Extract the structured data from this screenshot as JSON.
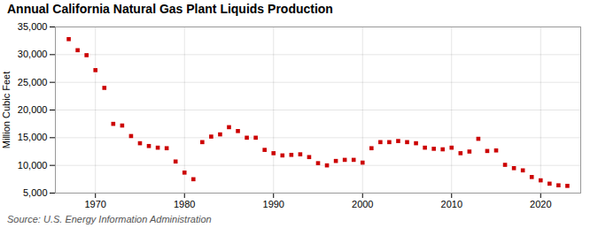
{
  "chart_data": {
    "type": "scatter",
    "title": "Annual California Natural Gas Plant Liquids Production",
    "ylabel": "Million Cubic Feet",
    "source": "Source: U.S. Energy Information Administration",
    "color": "#cc0000",
    "marker": "square",
    "grid": true,
    "x": [
      1967,
      1968,
      1969,
      1970,
      1971,
      1972,
      1973,
      1974,
      1975,
      1976,
      1977,
      1978,
      1979,
      1980,
      1981,
      1982,
      1983,
      1984,
      1985,
      1986,
      1987,
      1988,
      1989,
      1990,
      1991,
      1992,
      1993,
      1994,
      1995,
      1996,
      1997,
      1998,
      1999,
      2000,
      2001,
      2002,
      2003,
      2004,
      2005,
      2006,
      2007,
      2008,
      2009,
      2010,
      2011,
      2012,
      2013,
      2014,
      2015,
      2016,
      2017,
      2018,
      2019,
      2020,
      2021,
      2022,
      2023
    ],
    "values": [
      32800,
      30800,
      29900,
      27200,
      24000,
      17500,
      17200,
      15300,
      14000,
      13500,
      13200,
      13100,
      10700,
      8700,
      7500,
      14200,
      15200,
      15600,
      16900,
      16200,
      15000,
      15000,
      12800,
      12200,
      11800,
      11900,
      12000,
      11500,
      10400,
      10000,
      10800,
      11000,
      11000,
      10500,
      13100,
      14200,
      14200,
      14400,
      14200,
      14000,
      13200,
      13000,
      12900,
      13200,
      12200,
      12500,
      14800,
      12600,
      12700,
      10100,
      9500,
      9100,
      7900,
      7300,
      6700,
      6400,
      6300
    ],
    "xlim": [
      1965.5,
      2024.5
    ],
    "xticks": [
      1970,
      1980,
      1990,
      2000,
      2010,
      2020
    ],
    "ylim": [
      5000,
      35000
    ],
    "yticks": [
      {
        "value": 5000,
        "label": "5,000"
      },
      {
        "value": 10000,
        "label": "10,000"
      },
      {
        "value": 15000,
        "label": "15,000"
      },
      {
        "value": 20000,
        "label": "20,000"
      },
      {
        "value": 25000,
        "label": "25,000"
      },
      {
        "value": 30000,
        "label": "30,000"
      },
      {
        "value": 35000,
        "label": "35,000"
      }
    ]
  }
}
